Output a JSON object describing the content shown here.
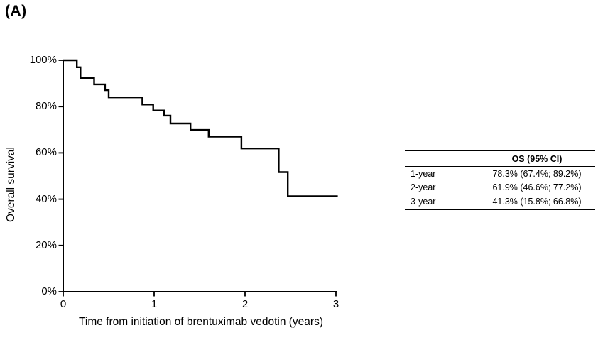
{
  "panel_label": "(A)",
  "chart_data": {
    "type": "line",
    "subtype": "kaplan-meier-step-curve",
    "title": "",
    "xlabel": "Time from initiation of brentuximab vedotin (years)",
    "ylabel": "Overall survival",
    "xlim": [
      0,
      3
    ],
    "ylim": [
      0,
      100
    ],
    "x_ticks": [
      0,
      1,
      2,
      3
    ],
    "y_ticks": [
      "0%",
      "20%",
      "40%",
      "60%",
      "80%",
      "100%"
    ],
    "grid": false,
    "legend": "none",
    "line_color": "#000000",
    "series": [
      {
        "name": "Overall survival",
        "steps": [
          {
            "t": 0.0,
            "s": 100
          },
          {
            "t": 0.15,
            "s": 97.0
          },
          {
            "t": 0.19,
            "s": 92.3
          },
          {
            "t": 0.34,
            "s": 89.6
          },
          {
            "t": 0.46,
            "s": 87.1
          },
          {
            "t": 0.5,
            "s": 84.0
          },
          {
            "t": 0.87,
            "s": 80.9
          },
          {
            "t": 0.99,
            "s": 78.3
          },
          {
            "t": 1.11,
            "s": 76.1
          },
          {
            "t": 1.18,
            "s": 72.7
          },
          {
            "t": 1.4,
            "s": 69.9
          },
          {
            "t": 1.6,
            "s": 67.0
          },
          {
            "t": 1.96,
            "s": 61.9
          },
          {
            "t": 2.37,
            "s": 51.7
          },
          {
            "t": 2.47,
            "s": 41.3
          },
          {
            "t": 3.02,
            "s": 41.3
          }
        ]
      }
    ]
  },
  "summary_table": {
    "header": "OS (95% CI)",
    "rows": [
      {
        "label": "1-year",
        "value": "78.3% (67.4%; 89.2%)"
      },
      {
        "label": "2-year",
        "value": "61.9% (46.6%; 77.2%)"
      },
      {
        "label": "3-year",
        "value": "41.3% (15.8%; 66.8%)"
      }
    ]
  }
}
